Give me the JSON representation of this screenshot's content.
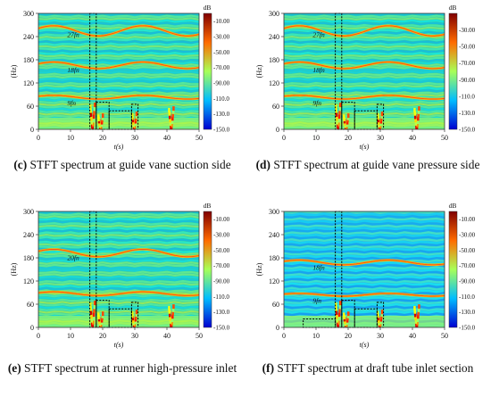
{
  "chart_data": [
    {
      "type": "heatmap",
      "panel_letter": "(c)",
      "title": "STFT spectrum at guide vane suction side",
      "xlabel": "t(s)",
      "ylabel": "(Hz)",
      "xlim": [
        0,
        50
      ],
      "ylim": [
        0,
        300
      ],
      "x_ticks": [
        "0",
        "10",
        "20",
        "30",
        "40",
        "50"
      ],
      "y_ticks": [
        "0",
        "60",
        "120",
        "180",
        "240",
        "300"
      ],
      "colorbar": {
        "unit": "dB",
        "range": [
          -150,
          0
        ],
        "ticks": [
          "-10.00",
          "-30.00",
          "-50.00",
          "-70.00",
          "-90.00",
          "-110.0",
          "-130.0",
          "-150.0"
        ]
      },
      "harmonics": [
        {
          "label": "9fn",
          "base": 80,
          "amp": 8
        },
        {
          "label": "18fn",
          "base": 160,
          "amp": 14
        },
        {
          "label": "27fn",
          "base": 246,
          "amp": 22
        }
      ],
      "dashed_boxes": [
        {
          "t": [
            16,
            18
          ],
          "f": [
            0,
            300
          ]
        },
        {
          "t": [
            18,
            22
          ],
          "f": [
            0,
            70
          ]
        },
        {
          "t": [
            22,
            29
          ],
          "f": [
            0,
            48
          ]
        },
        {
          "t": [
            29,
            31
          ],
          "f": [
            0,
            65
          ]
        }
      ]
    },
    {
      "type": "heatmap",
      "panel_letter": "(d)",
      "title": "STFT spectrum at guide vane pressure side",
      "xlabel": "t(s)",
      "ylabel": "(Hz)",
      "xlim": [
        0,
        50
      ],
      "ylim": [
        0,
        300
      ],
      "x_ticks": [
        "0",
        "10",
        "20",
        "30",
        "40",
        "50"
      ],
      "y_ticks": [
        "0",
        "60",
        "120",
        "180",
        "240",
        "300"
      ],
      "colorbar": {
        "unit": "dB",
        "range": [
          -150,
          -10
        ],
        "ticks": [
          "-30.00",
          "-50.00",
          "-70.00",
          "-90.00",
          "-110.0",
          "-130.0",
          "-150.0"
        ]
      },
      "harmonics": [
        {
          "label": "9fn",
          "base": 80,
          "amp": 8
        },
        {
          "label": "18fn",
          "base": 160,
          "amp": 14
        },
        {
          "label": "27fn",
          "base": 246,
          "amp": 22
        }
      ],
      "dashed_boxes": [
        {
          "t": [
            16,
            18
          ],
          "f": [
            0,
            300
          ]
        },
        {
          "t": [
            18,
            22
          ],
          "f": [
            0,
            70
          ]
        },
        {
          "t": [
            22,
            29
          ],
          "f": [
            0,
            48
          ]
        },
        {
          "t": [
            29,
            31
          ],
          "f": [
            0,
            65
          ]
        }
      ]
    },
    {
      "type": "heatmap",
      "panel_letter": "(e)",
      "title": "STFT spectrum at runner high-pressure inlet",
      "xlabel": "t(s)",
      "ylabel": "(Hz)",
      "xlim": [
        0,
        50
      ],
      "ylim": [
        0,
        300
      ],
      "x_ticks": [
        "0",
        "10",
        "20",
        "30",
        "40",
        "50"
      ],
      "y_ticks": [
        "0",
        "60",
        "120",
        "180",
        "240",
        "300"
      ],
      "colorbar": {
        "unit": "dB",
        "range": [
          -150,
          0
        ],
        "ticks": [
          "-10.00",
          "-30.00",
          "-50.00",
          "-70.00",
          "-90.00",
          "-110.0",
          "-130.0",
          "-150.0"
        ]
      },
      "harmonics": [
        {
          "label": "",
          "base": 84,
          "amp": 8
        },
        {
          "label": "20fn",
          "base": 186,
          "amp": 16
        }
      ],
      "dashed_boxes": [
        {
          "t": [
            16,
            18
          ],
          "f": [
            0,
            300
          ]
        },
        {
          "t": [
            18,
            22
          ],
          "f": [
            0,
            70
          ]
        },
        {
          "t": [
            22,
            29
          ],
          "f": [
            0,
            48
          ]
        },
        {
          "t": [
            29,
            31
          ],
          "f": [
            0,
            65
          ]
        }
      ]
    },
    {
      "type": "heatmap",
      "panel_letter": "(f)",
      "title": "STFT spectrum at draft tube inlet section",
      "xlabel": "t(s)",
      "ylabel": "(Hz)",
      "xlim": [
        0,
        50
      ],
      "ylim": [
        0,
        300
      ],
      "x_ticks": [
        "0",
        "10",
        "20",
        "30",
        "40",
        "50"
      ],
      "y_ticks": [
        "0",
        "60",
        "120",
        "180",
        "240",
        "300"
      ],
      "colorbar": {
        "unit": "dB",
        "range": [
          -150,
          0
        ],
        "ticks": [
          "-10.00",
          "-30.00",
          "-50.00",
          "-70.00",
          "-90.00",
          "-110.0",
          "-130.0",
          "-150.0"
        ]
      },
      "harmonics": [
        {
          "label": "9fn",
          "base": 82,
          "amp": 6
        },
        {
          "label": "18fn",
          "base": 164,
          "amp": 10
        }
      ],
      "dashed_boxes": [
        {
          "t": [
            6,
            16
          ],
          "f": [
            0,
            22
          ]
        },
        {
          "t": [
            16,
            18
          ],
          "f": [
            0,
            300
          ]
        },
        {
          "t": [
            18,
            22
          ],
          "f": [
            0,
            70
          ]
        },
        {
          "t": [
            22,
            29
          ],
          "f": [
            0,
            48
          ]
        },
        {
          "t": [
            29,
            31
          ],
          "f": [
            0,
            65
          ]
        }
      ]
    }
  ]
}
